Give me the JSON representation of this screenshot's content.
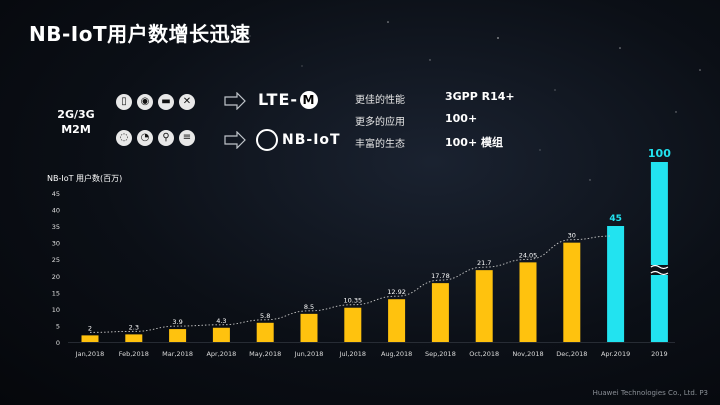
{
  "title": "NB-IoT用户数增长迅速",
  "intro": {
    "legacy_line1": "2G/3G",
    "legacy_line2": "M2M",
    "row1_icons": [
      "phone-icon",
      "camera-icon",
      "car-icon",
      "tools-icon"
    ],
    "row2_icons": [
      "meter-icon",
      "gauge-icon",
      "bicycle-icon",
      "ac-unit-icon"
    ],
    "lte_m_text": "LTE-",
    "lte_m_badge": "M",
    "nbiot_text": "NB-IoT",
    "benefits": [
      {
        "label": "更佳的性能",
        "value": "3GPP R14+"
      },
      {
        "label": "更多的应用",
        "value": "100+"
      },
      {
        "label": "丰富的生态",
        "value": "100+ 模组"
      }
    ]
  },
  "chart_data": {
    "type": "bar",
    "ylabel": "NB-IoT 用户数(百万)",
    "yticks": [
      0,
      5,
      10,
      15,
      20,
      25,
      30,
      35,
      40,
      45
    ],
    "ylim": [
      0,
      45
    ],
    "axis_break": true,
    "categories": [
      "Jan,2018",
      "Feb,2018",
      "Mar,2018",
      "Apr,2018",
      "May,2018",
      "Jun,2018",
      "Jul,2018",
      "Aug,2018",
      "Sep,2018",
      "Oct,2018",
      "Nov,2018",
      "Dec,2018",
      "Apr.2019",
      "2019"
    ],
    "values": [
      2,
      2.3,
      3.9,
      4.3,
      5.8,
      8.5,
      10.35,
      12.92,
      17.78,
      21.7,
      24.05,
      30,
      45,
      100
    ],
    "value_labels": [
      "2",
      "2.3",
      "3.9",
      "4.3",
      "5.8",
      "8.5",
      "10.35",
      "12.92",
      "17.78",
      "21.7",
      "24.05",
      "30",
      "45",
      "100"
    ],
    "trendline": "dotted",
    "colors": {
      "actual": "#ffc20e",
      "forecast": "#22e3f0"
    }
  },
  "footer": "Huawei Technologies Co., Ltd.   P3"
}
